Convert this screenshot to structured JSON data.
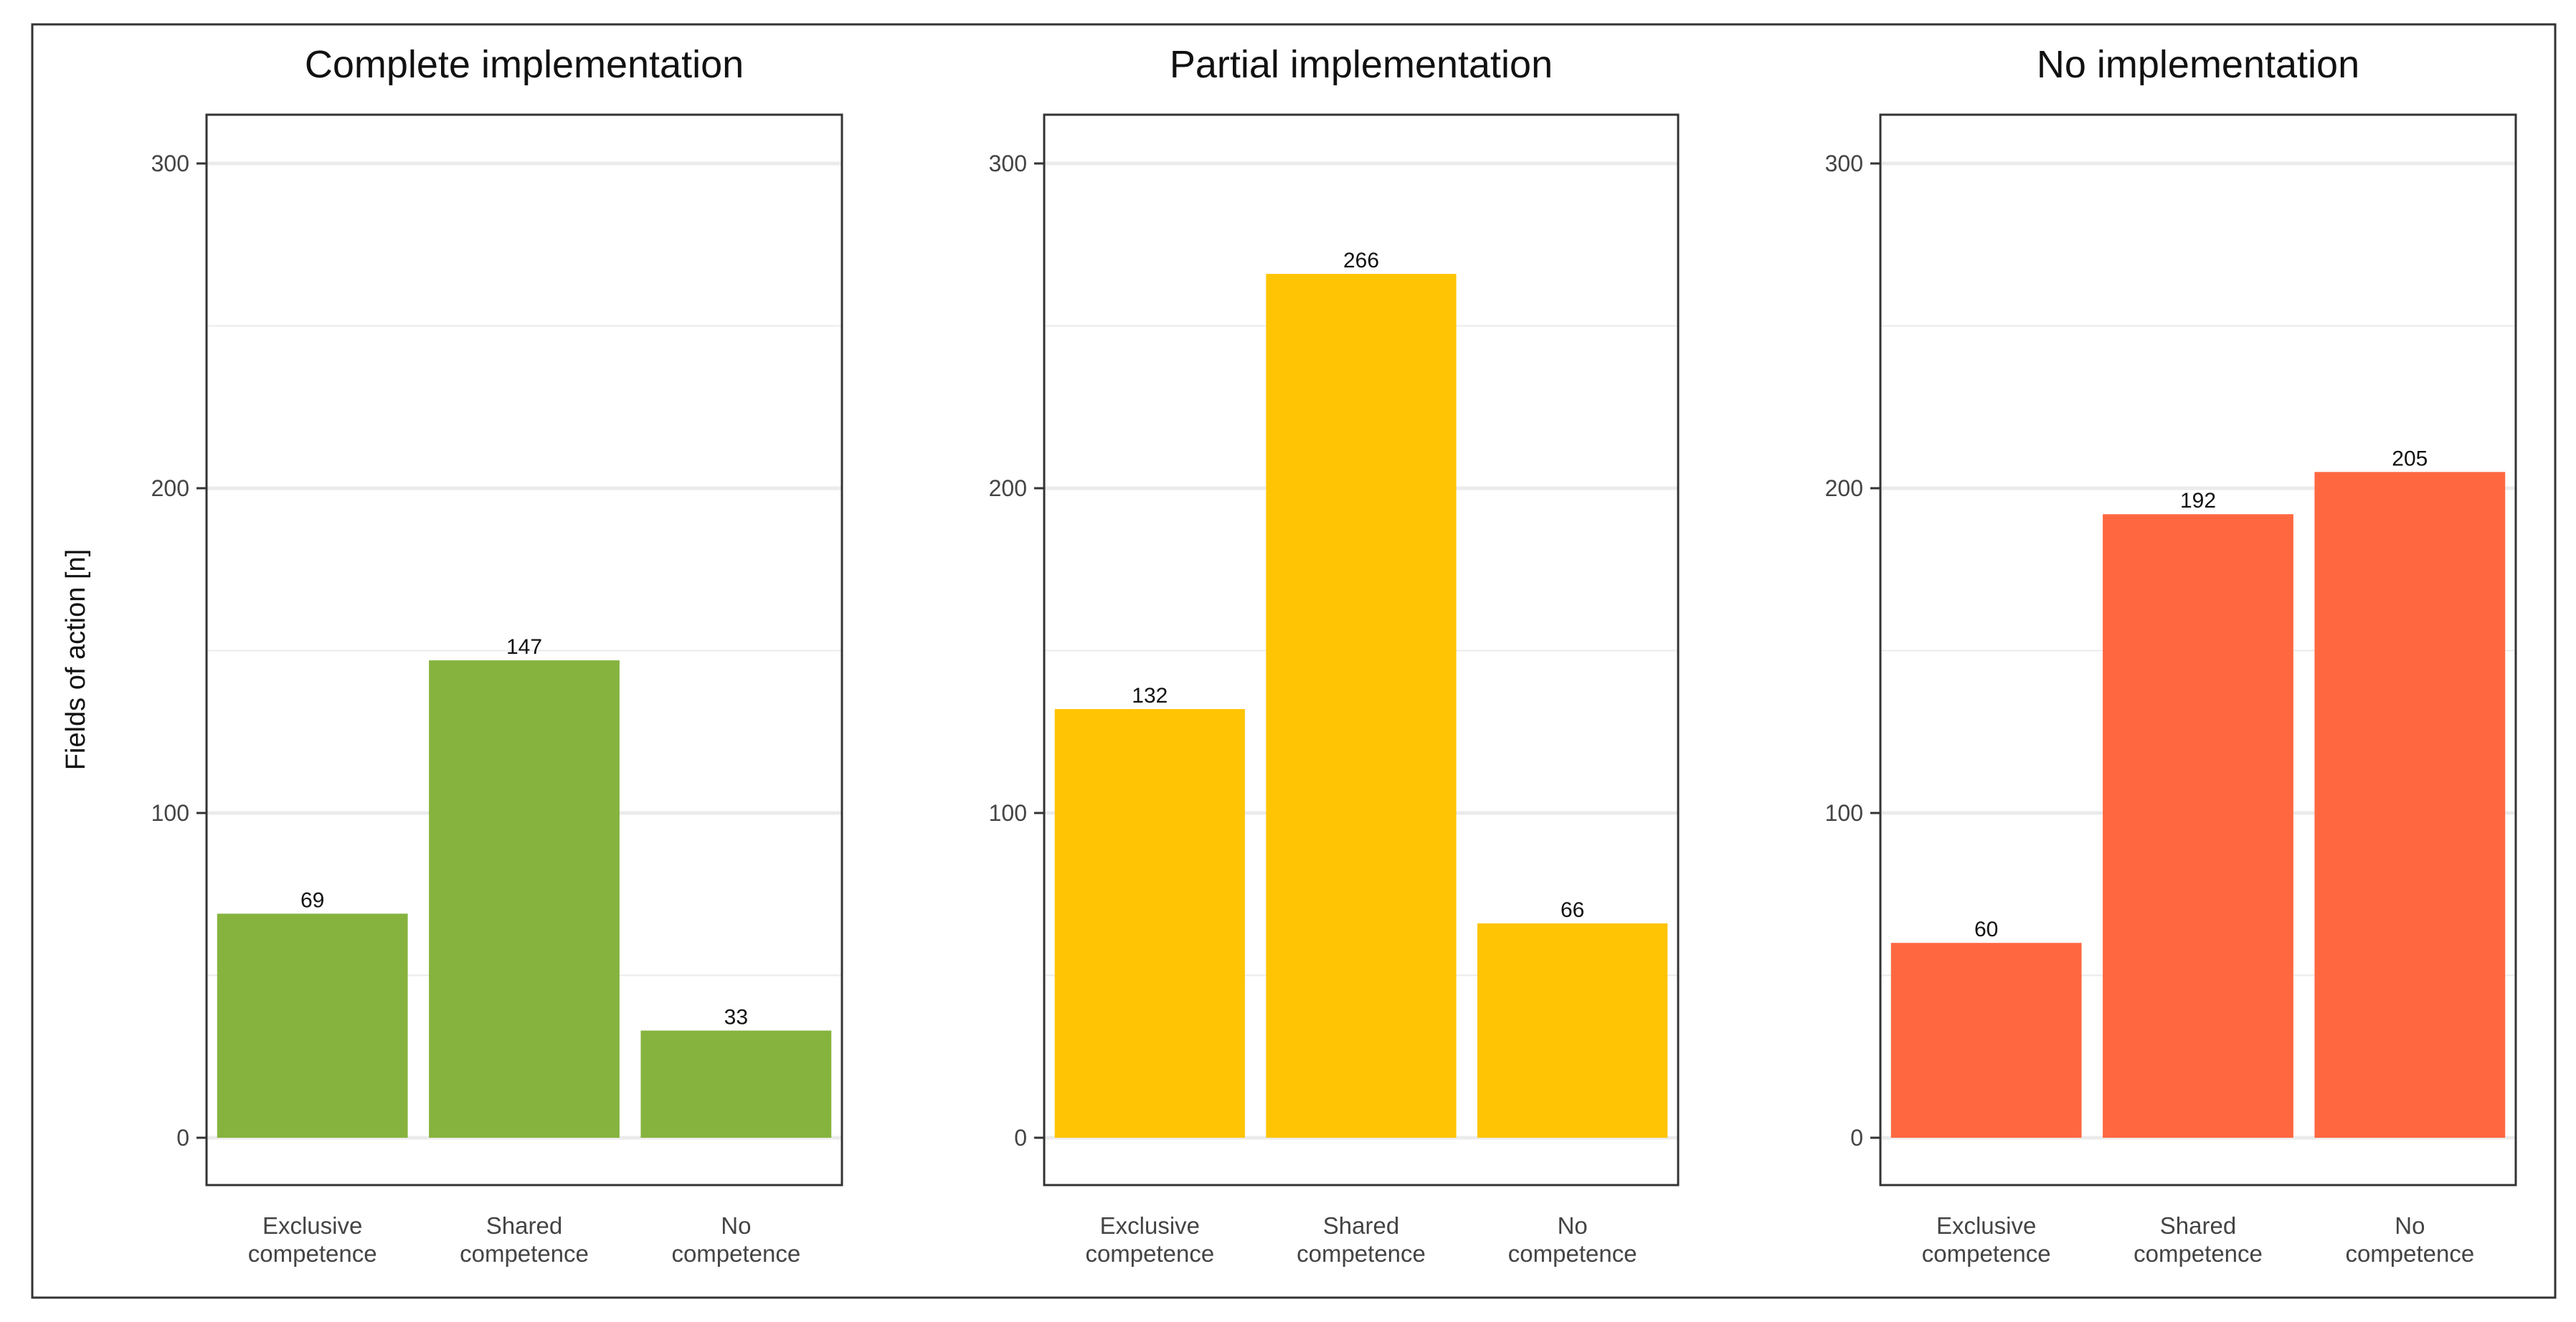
{
  "chart_data": [
    {
      "type": "bar",
      "title": "Complete implementation",
      "categories": [
        [
          "Exclusive",
          "competence"
        ],
        [
          "Shared",
          "competence"
        ],
        [
          "No",
          "competence"
        ]
      ],
      "values": [
        69,
        147,
        33
      ],
      "color": "#86B33E",
      "ylabel": "Fields of action [n]",
      "ylim": [
        0,
        315
      ],
      "yticks": [
        0,
        100,
        200,
        300
      ],
      "minor_gridlines": [
        50,
        150,
        250
      ],
      "grid": true
    },
    {
      "type": "bar",
      "title": "Partial implementation",
      "categories": [
        [
          "Exclusive",
          "competence"
        ],
        [
          "Shared",
          "competence"
        ],
        [
          "No",
          "competence"
        ]
      ],
      "values": [
        132,
        266,
        66
      ],
      "color": "#FFC404",
      "ylabel": "",
      "ylim": [
        0,
        315
      ],
      "yticks": [
        0,
        100,
        200,
        300
      ],
      "minor_gridlines": [
        50,
        150,
        250
      ],
      "grid": true
    },
    {
      "type": "bar",
      "title": "No implementation",
      "categories": [
        [
          "Exclusive",
          "competence"
        ],
        [
          "Shared",
          "competence"
        ],
        [
          "No",
          "competence"
        ]
      ],
      "values": [
        60,
        192,
        205
      ],
      "color": "#FF6740",
      "ylabel": "",
      "ylim": [
        0,
        315
      ],
      "yticks": [
        0,
        100,
        200,
        300
      ],
      "minor_gridlines": [
        50,
        150,
        250
      ],
      "grid": true
    }
  ],
  "shared_ylabel": "Fields of action [n]",
  "colors": {
    "background": "#FFFFFF",
    "panel_border": "#333333",
    "gridline": "#EBEBEB",
    "tick_text": "#444444"
  }
}
